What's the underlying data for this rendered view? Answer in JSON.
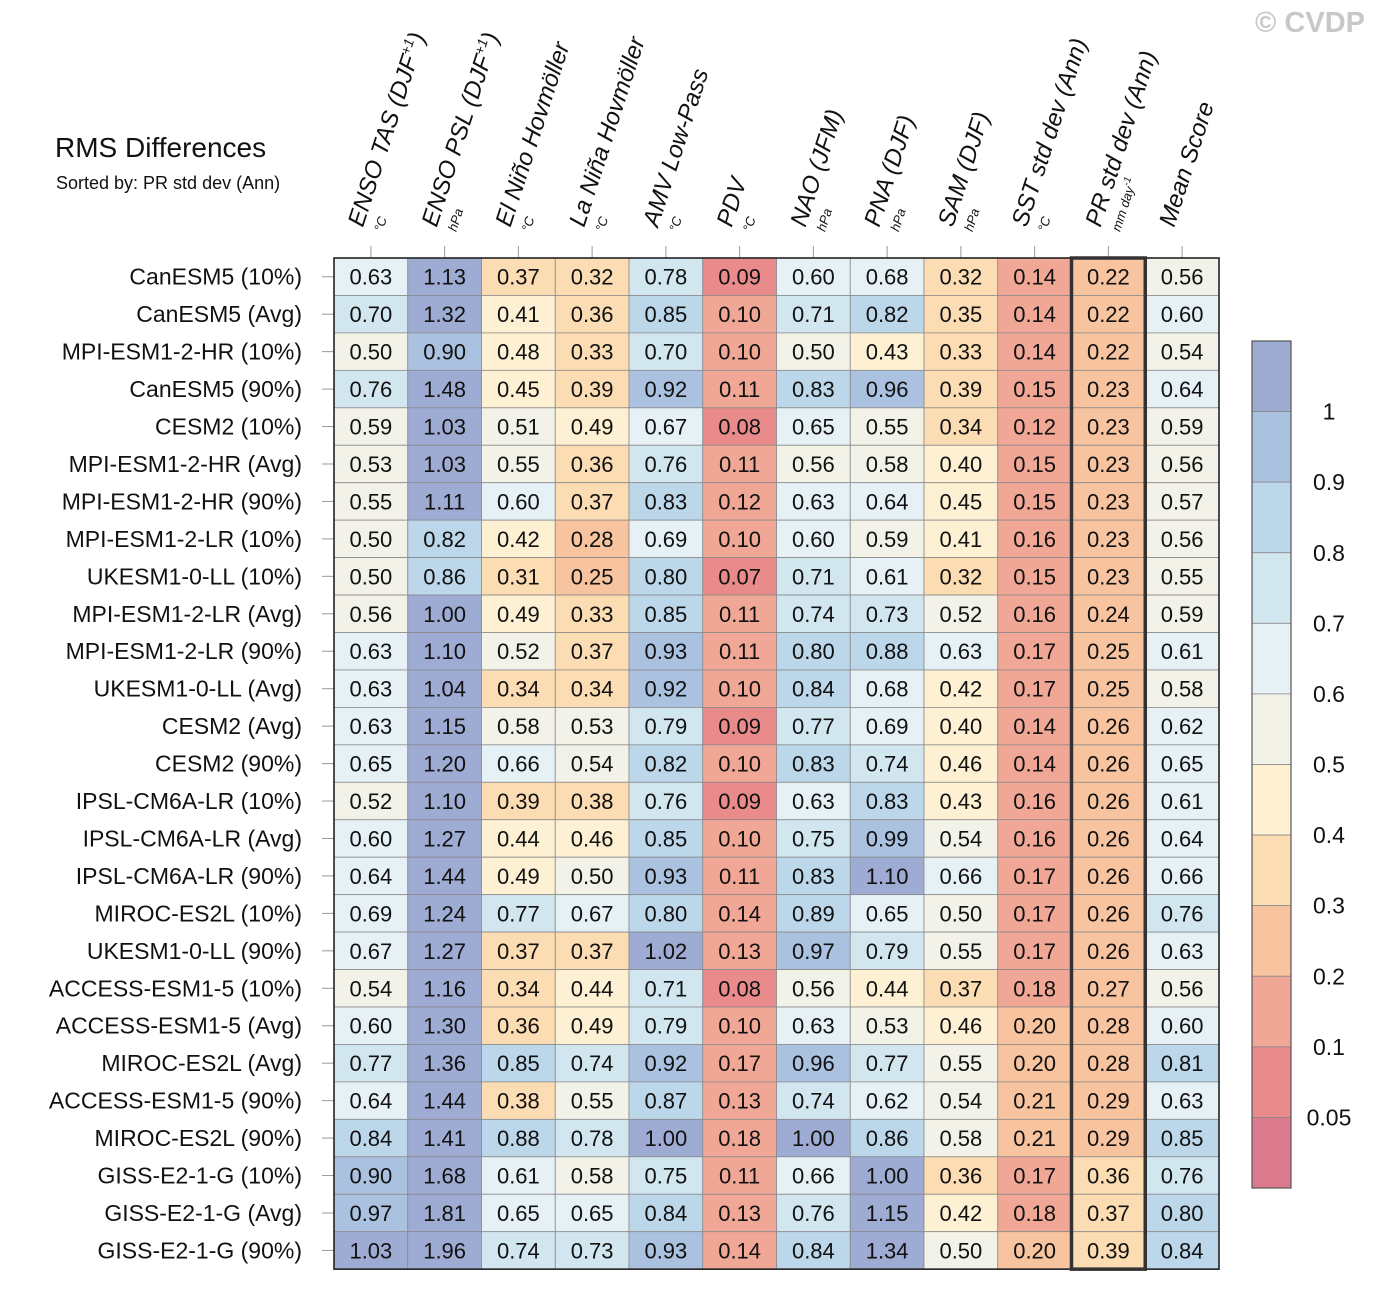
{
  "watermark": "© CVDP",
  "chart_data": {
    "type": "heatmap",
    "title": "RMS Differences",
    "subtitle": "Sorted by: PR std dev (Ann)",
    "columns": [
      {
        "label": "ENSO TAS (DJF+1)",
        "unit": "°C"
      },
      {
        "label": "ENSO PSL (DJF+1)",
        "unit": "hPa"
      },
      {
        "label": "El Niño Hovmöller",
        "unit": "°C"
      },
      {
        "label": "La Niña Hovmöller",
        "unit": "°C"
      },
      {
        "label": "AMV Low-Pass",
        "unit": "°C"
      },
      {
        "label": "PDV",
        "unit": "°C"
      },
      {
        "label": "NAO (JFM)",
        "unit": "hPa"
      },
      {
        "label": "PNA (DJF)",
        "unit": "hPa"
      },
      {
        "label": "SAM (DJF)",
        "unit": "hPa"
      },
      {
        "label": "SST std dev (Ann)",
        "unit": "°C"
      },
      {
        "label": "PR std dev (Ann)",
        "unit": "mm day-1"
      },
      {
        "label": "Mean Score",
        "unit": ""
      }
    ],
    "highlight_column": 10,
    "rows": [
      "CanESM5 (10%)",
      "CanESM5 (Avg)",
      "MPI-ESM1-2-HR (10%)",
      "CanESM5 (90%)",
      "CESM2 (10%)",
      "MPI-ESM1-2-HR (Avg)",
      "MPI-ESM1-2-HR (90%)",
      "MPI-ESM1-2-LR (10%)",
      "UKESM1-0-LL (10%)",
      "MPI-ESM1-2-LR (Avg)",
      "MPI-ESM1-2-LR (90%)",
      "UKESM1-0-LL (Avg)",
      "CESM2 (Avg)",
      "CESM2 (90%)",
      "IPSL-CM6A-LR (10%)",
      "IPSL-CM6A-LR (Avg)",
      "IPSL-CM6A-LR (90%)",
      "MIROC-ES2L (10%)",
      "UKESM1-0-LL (90%)",
      "ACCESS-ESM1-5 (10%)",
      "ACCESS-ESM1-5 (Avg)",
      "MIROC-ES2L (Avg)",
      "ACCESS-ESM1-5 (90%)",
      "MIROC-ES2L (90%)",
      "GISS-E2-1-G (10%)",
      "GISS-E2-1-G (Avg)",
      "GISS-E2-1-G (90%)"
    ],
    "values": [
      [
        0.63,
        1.13,
        0.37,
        0.32,
        0.78,
        0.09,
        0.6,
        0.68,
        0.32,
        0.14,
        0.22,
        0.56
      ],
      [
        0.7,
        1.32,
        0.41,
        0.36,
        0.85,
        0.1,
        0.71,
        0.82,
        0.35,
        0.14,
        0.22,
        0.6
      ],
      [
        0.5,
        0.9,
        0.48,
        0.33,
        0.7,
        0.1,
        0.5,
        0.43,
        0.33,
        0.14,
        0.22,
        0.54
      ],
      [
        0.76,
        1.48,
        0.45,
        0.39,
        0.92,
        0.11,
        0.83,
        0.96,
        0.39,
        0.15,
        0.23,
        0.64
      ],
      [
        0.59,
        1.03,
        0.51,
        0.49,
        0.67,
        0.08,
        0.65,
        0.55,
        0.34,
        0.12,
        0.23,
        0.59
      ],
      [
        0.53,
        1.03,
        0.55,
        0.36,
        0.76,
        0.11,
        0.56,
        0.58,
        0.4,
        0.15,
        0.23,
        0.56
      ],
      [
        0.55,
        1.11,
        0.6,
        0.37,
        0.83,
        0.12,
        0.63,
        0.64,
        0.45,
        0.15,
        0.23,
        0.57
      ],
      [
        0.5,
        0.82,
        0.42,
        0.28,
        0.69,
        0.1,
        0.6,
        0.59,
        0.41,
        0.16,
        0.23,
        0.56
      ],
      [
        0.5,
        0.86,
        0.31,
        0.25,
        0.8,
        0.07,
        0.71,
        0.61,
        0.32,
        0.15,
        0.23,
        0.55
      ],
      [
        0.56,
        1.0,
        0.49,
        0.33,
        0.85,
        0.11,
        0.74,
        0.73,
        0.52,
        0.16,
        0.24,
        0.59
      ],
      [
        0.63,
        1.1,
        0.52,
        0.37,
        0.93,
        0.11,
        0.8,
        0.88,
        0.63,
        0.17,
        0.25,
        0.61
      ],
      [
        0.63,
        1.04,
        0.34,
        0.34,
        0.92,
        0.1,
        0.84,
        0.68,
        0.42,
        0.17,
        0.25,
        0.58
      ],
      [
        0.63,
        1.15,
        0.58,
        0.53,
        0.79,
        0.09,
        0.77,
        0.69,
        0.4,
        0.14,
        0.26,
        0.62
      ],
      [
        0.65,
        1.2,
        0.66,
        0.54,
        0.82,
        0.1,
        0.83,
        0.74,
        0.46,
        0.14,
        0.26,
        0.65
      ],
      [
        0.52,
        1.1,
        0.39,
        0.38,
        0.76,
        0.09,
        0.63,
        0.83,
        0.43,
        0.16,
        0.26,
        0.61
      ],
      [
        0.6,
        1.27,
        0.44,
        0.46,
        0.85,
        0.1,
        0.75,
        0.99,
        0.54,
        0.16,
        0.26,
        0.64
      ],
      [
        0.64,
        1.44,
        0.49,
        0.5,
        0.93,
        0.11,
        0.83,
        1.1,
        0.66,
        0.17,
        0.26,
        0.66
      ],
      [
        0.69,
        1.24,
        0.77,
        0.67,
        0.8,
        0.14,
        0.89,
        0.65,
        0.5,
        0.17,
        0.26,
        0.76
      ],
      [
        0.67,
        1.27,
        0.37,
        0.37,
        1.02,
        0.13,
        0.97,
        0.79,
        0.55,
        0.17,
        0.26,
        0.63
      ],
      [
        0.54,
        1.16,
        0.34,
        0.44,
        0.71,
        0.08,
        0.56,
        0.44,
        0.37,
        0.18,
        0.27,
        0.56
      ],
      [
        0.6,
        1.3,
        0.36,
        0.49,
        0.79,
        0.1,
        0.63,
        0.53,
        0.46,
        0.2,
        0.28,
        0.6
      ],
      [
        0.77,
        1.36,
        0.85,
        0.74,
        0.92,
        0.17,
        0.96,
        0.77,
        0.55,
        0.2,
        0.28,
        0.81
      ],
      [
        0.64,
        1.44,
        0.38,
        0.55,
        0.87,
        0.13,
        0.74,
        0.62,
        0.54,
        0.21,
        0.29,
        0.63
      ],
      [
        0.84,
        1.41,
        0.88,
        0.78,
        1.0,
        0.18,
        1.0,
        0.86,
        0.58,
        0.21,
        0.29,
        0.85
      ],
      [
        0.9,
        1.68,
        0.61,
        0.58,
        0.75,
        0.11,
        0.66,
        1.0,
        0.36,
        0.17,
        0.36,
        0.76
      ],
      [
        0.97,
        1.81,
        0.65,
        0.65,
        0.84,
        0.13,
        0.76,
        1.15,
        0.42,
        0.18,
        0.37,
        0.8
      ],
      [
        1.03,
        1.96,
        0.74,
        0.73,
        0.93,
        0.14,
        0.84,
        1.34,
        0.5,
        0.2,
        0.39,
        0.84
      ]
    ],
    "colorbar": {
      "labels": [
        "1",
        "0.9",
        "0.8",
        "0.7",
        "0.6",
        "0.5",
        "0.4",
        "0.3",
        "0.2",
        "0.1",
        "0.05"
      ],
      "colors": [
        "#9eabd3",
        "#aac2e0",
        "#bcd6ea",
        "#d2e6f0",
        "#e6f1f5",
        "#f3f2e8",
        "#fdf0d3",
        "#fcdcb3",
        "#f8c4a0",
        "#f1a796",
        "#e98b8b",
        "#dc7a8e"
      ]
    }
  }
}
